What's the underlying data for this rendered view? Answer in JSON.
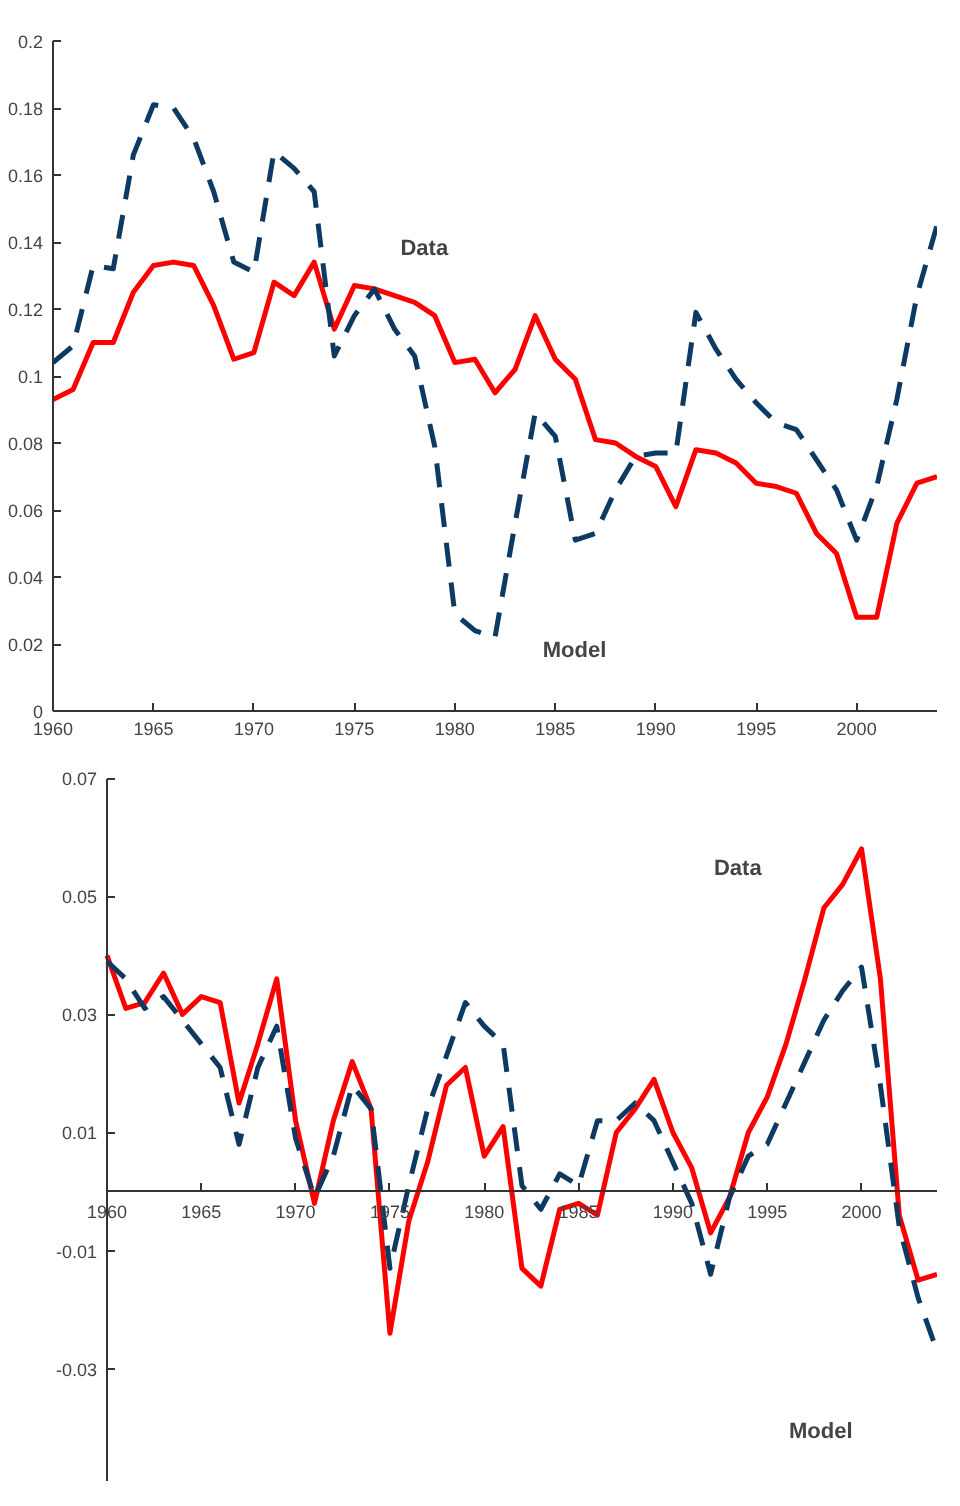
{
  "chart_data": [
    {
      "type": "line",
      "x": [
        1960,
        1961,
        1962,
        1963,
        1964,
        1965,
        1966,
        1967,
        1968,
        1969,
        1970,
        1971,
        1972,
        1973,
        1974,
        1975,
        1976,
        1977,
        1978,
        1979,
        1980,
        1981,
        1982,
        1983,
        1984,
        1985,
        1986,
        1987,
        1988,
        1989,
        1990,
        1991,
        1992,
        1993,
        1994,
        1995,
        1996,
        1997,
        1998,
        1999,
        2000,
        2001,
        2002,
        2003,
        2004
      ],
      "series": [
        {
          "color": "#ff0000",
          "line_style": "solid",
          "values": [
            0.093,
            0.096,
            0.11,
            0.11,
            0.125,
            0.133,
            0.134,
            0.133,
            0.121,
            0.105,
            0.107,
            0.128,
            0.124,
            0.134,
            0.114,
            0.127,
            0.126,
            0.124,
            0.122,
            0.118,
            0.104,
            0.105,
            0.095,
            0.102,
            0.118,
            0.105,
            0.099,
            0.081,
            0.08,
            0.076,
            0.073,
            0.061,
            0.078,
            0.077,
            0.074,
            0.068,
            0.067,
            0.065,
            0.053,
            0.047,
            0.028,
            0.028,
            0.056,
            0.068,
            0.07
          ]
        },
        {
          "color": "#0d3a63",
          "line_style": "dashed",
          "values": [
            0.104,
            0.109,
            0.133,
            0.132,
            0.166,
            0.181,
            0.18,
            0.171,
            0.155,
            0.134,
            0.131,
            0.167,
            0.162,
            0.155,
            0.106,
            0.118,
            0.126,
            0.114,
            0.106,
            0.079,
            0.029,
            0.024,
            0.022,
            0.056,
            0.089,
            0.082,
            0.051,
            0.053,
            0.066,
            0.076,
            0.077,
            0.077,
            0.119,
            0.108,
            0.099,
            0.092,
            0.086,
            0.084,
            0.075,
            0.066,
            0.051,
            0.067,
            0.093,
            0.124,
            0.145
          ]
        }
      ],
      "annotations": [
        "Data",
        "Model"
      ],
      "xlim": [
        1960,
        2004
      ],
      "xticks": [
        1960,
        1965,
        1970,
        1975,
        1980,
        1985,
        1990,
        1995,
        2000
      ],
      "ylim": [
        0,
        0.2
      ],
      "yticks": [
        0,
        0.02,
        0.04,
        0.06,
        0.08,
        0.1,
        0.12,
        0.14,
        0.16,
        0.18,
        0.2
      ],
      "grid": false
    },
    {
      "type": "line",
      "x": [
        1960,
        1961,
        1962,
        1963,
        1964,
        1965,
        1966,
        1967,
        1968,
        1969,
        1970,
        1971,
        1972,
        1973,
        1974,
        1975,
        1976,
        1977,
        1978,
        1979,
        1980,
        1981,
        1982,
        1983,
        1984,
        1985,
        1986,
        1987,
        1988,
        1989,
        1990,
        1991,
        1992,
        1993,
        1994,
        1995,
        1996,
        1997,
        1998,
        1999,
        2000,
        2001,
        2002,
        2003,
        2004
      ],
      "series": [
        {
          "color": "#ff0000",
          "line_style": "solid",
          "values": [
            0.04,
            0.031,
            0.032,
            0.037,
            0.03,
            0.033,
            0.032,
            0.015,
            0.025,
            0.036,
            0.012,
            -0.002,
            0.012,
            0.022,
            0.014,
            -0.024,
            -0.005,
            0.005,
            0.018,
            0.021,
            0.006,
            0.011,
            -0.013,
            -0.016,
            -0.003,
            -0.002,
            -0.004,
            0.01,
            0.014,
            0.019,
            0.01,
            0.004,
            -0.007,
            -0.001,
            0.01,
            0.016,
            0.025,
            0.036,
            0.048,
            0.052,
            0.058,
            0.036,
            -0.004,
            -0.015,
            -0.014
          ]
        },
        {
          "color": "#0d3a63",
          "line_style": "dashed",
          "values": [
            0.039,
            0.036,
            0.031,
            0.033,
            0.029,
            0.025,
            0.021,
            0.008,
            0.021,
            0.028,
            0.009,
            -0.001,
            0.006,
            0.018,
            0.014,
            -0.013,
            0.001,
            0.014,
            0.023,
            0.032,
            0.028,
            0.025,
            0.001,
            -0.003,
            0.003,
            0.001,
            0.012,
            0.012,
            0.015,
            0.012,
            0.005,
            -0.002,
            -0.014,
            -0.001,
            0.006,
            0.008,
            0.015,
            0.022,
            0.029,
            0.034,
            0.038,
            0.018,
            -0.006,
            -0.018,
            -0.027
          ]
        }
      ],
      "annotations": [
        "Data",
        "Model"
      ],
      "xlim": [
        1960,
        2004
      ],
      "xticks": [
        1960,
        1965,
        1970,
        1975,
        1980,
        1985,
        1990,
        1995,
        2000
      ],
      "ylim": [
        -0.049,
        0.07
      ],
      "yticks": [
        -0.03,
        -0.01,
        0.01,
        0.03,
        0.05,
        0.07
      ],
      "grid": false
    }
  ]
}
